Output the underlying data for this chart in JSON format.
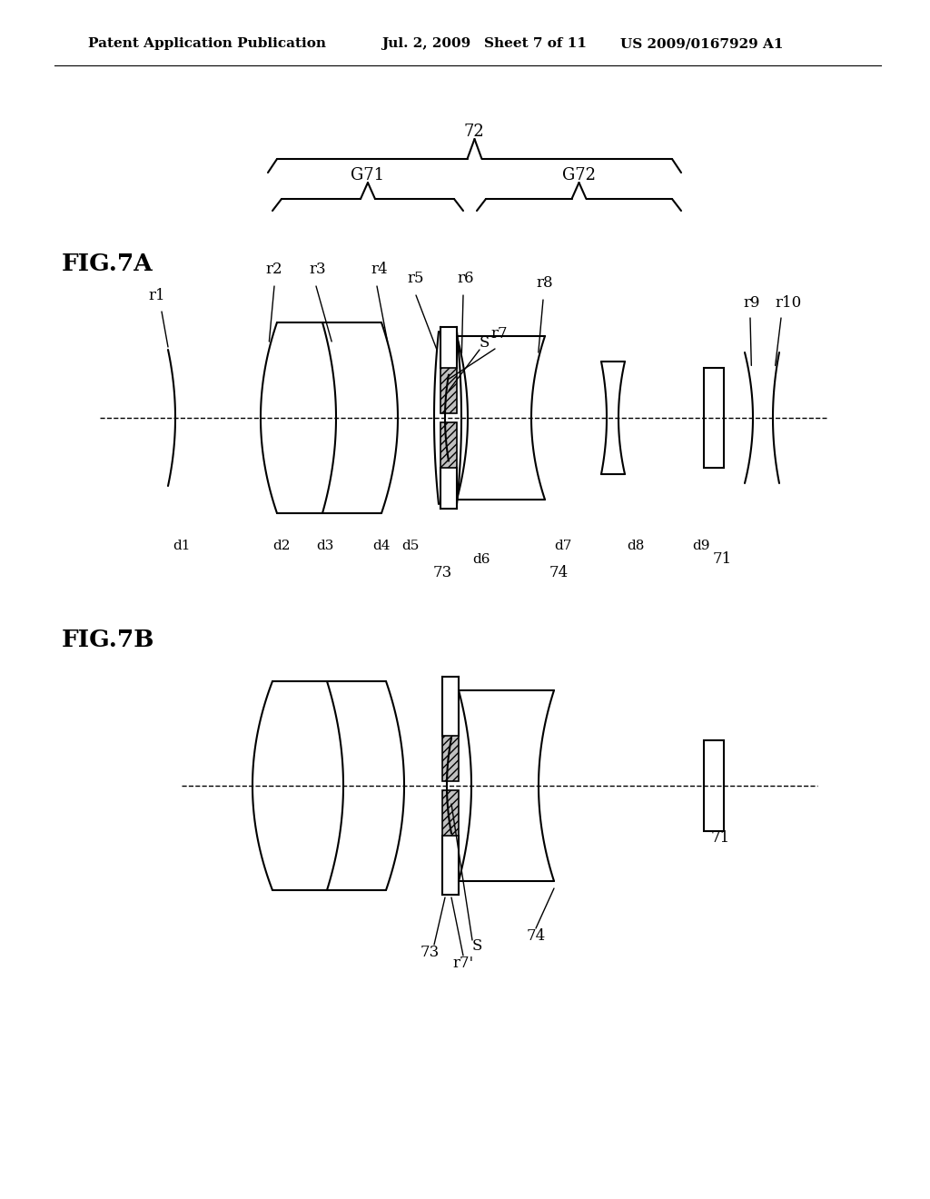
{
  "bg_color": "#ffffff",
  "header_text1": "Patent Application Publication",
  "header_text2": "Jul. 2, 2009",
  "header_text3": "Sheet 7 of 11",
  "header_text4": "US 2009/0167929 A1",
  "fig7a_label": "FIG.7A",
  "fig7b_label": "FIG.7B",
  "label_72": "72",
  "label_G71": "G71",
  "label_G72": "G72",
  "label_r1": "r1",
  "label_r2": "r2",
  "label_r3": "r3",
  "label_r4": "r4",
  "label_r5": "r5",
  "label_r6": "r6",
  "label_r7": "r7",
  "label_r7p": "r7'",
  "label_r8": "r8",
  "label_r9": "r9",
  "label_r10": "r10",
  "label_S": "S",
  "label_d1": "d1",
  "label_d2": "d2",
  "label_d3": "d3",
  "label_d4": "d4",
  "label_d5": "d5",
  "label_d6": "d6",
  "label_d7": "d7",
  "label_d8": "d8",
  "label_d9": "d9",
  "label_73": "73",
  "label_74": "74",
  "label_71": "71"
}
